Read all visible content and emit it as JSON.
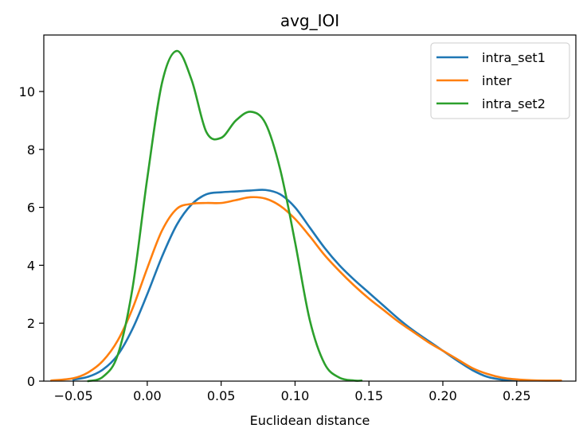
{
  "chart_data": {
    "type": "line",
    "title": "avg_IOI",
    "xlabel": "Euclidean distance",
    "ylabel": "",
    "xlim": [
      -0.07,
      0.29
    ],
    "ylim": [
      0,
      11.95
    ],
    "xticks": [
      -0.05,
      0.0,
      0.05,
      0.1,
      0.15,
      0.2,
      0.25
    ],
    "xtick_labels": [
      "−0.05",
      "0.00",
      "0.05",
      "0.10",
      "0.15",
      "0.20",
      "0.25"
    ],
    "yticks": [
      0,
      2,
      4,
      6,
      8,
      10
    ],
    "ytick_labels": [
      "0",
      "2",
      "4",
      "6",
      "8",
      "10"
    ],
    "legend_position": "top-right",
    "grid": false,
    "series": [
      {
        "name": "intra_set1",
        "color": "#1f77b4",
        "x": [
          -0.05,
          -0.04,
          -0.03,
          -0.02,
          -0.01,
          0.0,
          0.01,
          0.02,
          0.03,
          0.04,
          0.05,
          0.06,
          0.07,
          0.08,
          0.09,
          0.1,
          0.11,
          0.12,
          0.13,
          0.14,
          0.15,
          0.16,
          0.17,
          0.18,
          0.19,
          0.2,
          0.21,
          0.22,
          0.23,
          0.24,
          0.25
        ],
        "y": [
          0.05,
          0.15,
          0.4,
          0.9,
          1.8,
          3.0,
          4.3,
          5.4,
          6.1,
          6.45,
          6.52,
          6.55,
          6.58,
          6.6,
          6.45,
          6.0,
          5.3,
          4.6,
          4.0,
          3.5,
          3.05,
          2.6,
          2.15,
          1.75,
          1.4,
          1.05,
          0.7,
          0.38,
          0.15,
          0.05,
          0.02
        ]
      },
      {
        "name": "inter",
        "color": "#ff7f0e",
        "x": [
          -0.065,
          -0.05,
          -0.04,
          -0.03,
          -0.02,
          -0.01,
          0.0,
          0.01,
          0.02,
          0.03,
          0.04,
          0.05,
          0.06,
          0.07,
          0.08,
          0.09,
          0.1,
          0.11,
          0.12,
          0.13,
          0.14,
          0.15,
          0.16,
          0.17,
          0.18,
          0.19,
          0.2,
          0.21,
          0.22,
          0.23,
          0.24,
          0.25,
          0.26,
          0.27,
          0.28
        ],
        "y": [
          0.02,
          0.1,
          0.3,
          0.7,
          1.4,
          2.5,
          3.9,
          5.2,
          5.95,
          6.12,
          6.15,
          6.15,
          6.25,
          6.35,
          6.3,
          6.05,
          5.6,
          5.0,
          4.35,
          3.8,
          3.3,
          2.85,
          2.45,
          2.05,
          1.7,
          1.35,
          1.05,
          0.75,
          0.45,
          0.25,
          0.12,
          0.06,
          0.03,
          0.02,
          0.02
        ]
      },
      {
        "name": "intra_set2",
        "color": "#2ca02c",
        "x": [
          -0.04,
          -0.03,
          -0.02,
          -0.01,
          0.0,
          0.01,
          0.02,
          0.03,
          0.04,
          0.05,
          0.06,
          0.07,
          0.08,
          0.09,
          0.1,
          0.11,
          0.12,
          0.13,
          0.14,
          0.145
        ],
        "y": [
          0.0,
          0.15,
          0.9,
          3.2,
          7.0,
          10.3,
          11.4,
          10.4,
          8.6,
          8.4,
          9.0,
          9.3,
          8.9,
          7.3,
          4.8,
          2.1,
          0.6,
          0.12,
          0.02,
          0.02
        ]
      }
    ]
  }
}
